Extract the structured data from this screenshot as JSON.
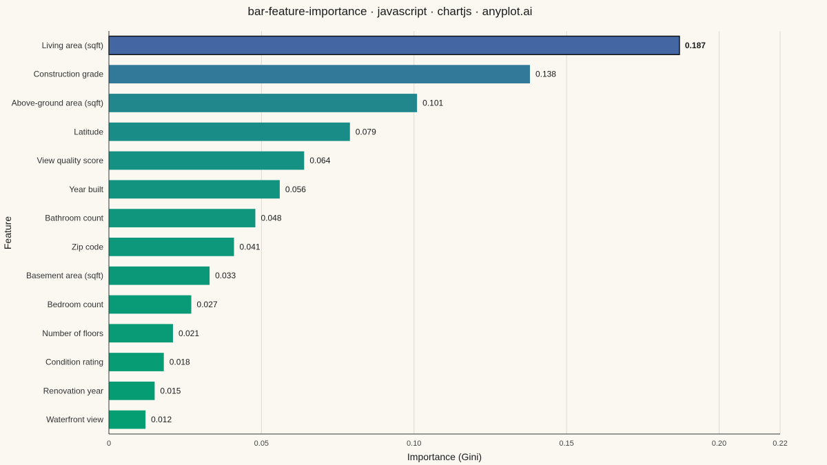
{
  "chart_data": {
    "type": "bar",
    "orientation": "horizontal",
    "title": "bar-feature-importance · javascript · chartjs · anyplot.ai",
    "xlabel": "Importance (Gini)",
    "ylabel": "Feature",
    "xlim": [
      0,
      0.22
    ],
    "x_ticks": [
      0,
      0.05,
      0.1,
      0.15,
      0.2,
      0.22
    ],
    "x_tick_labels": [
      "0",
      "0.05",
      "0.10",
      "0.15",
      "0.20",
      "0.22"
    ],
    "grid": "vertical",
    "legend": "none",
    "categories": [
      "Living area (sqft)",
      "Construction grade",
      "Above-ground area (sqft)",
      "Latitude",
      "View quality score",
      "Year built",
      "Bathroom count",
      "Zip code",
      "Basement area (sqft)",
      "Bedroom count",
      "Number of floors",
      "Condition rating",
      "Renovation year",
      "Waterfront view"
    ],
    "values": [
      0.187,
      0.138,
      0.101,
      0.079,
      0.064,
      0.056,
      0.048,
      0.041,
      0.033,
      0.027,
      0.021,
      0.018,
      0.015,
      0.012
    ],
    "value_labels": [
      "0.187",
      "0.138",
      "0.101",
      "0.079",
      "0.064",
      "0.056",
      "0.048",
      "0.041",
      "0.033",
      "0.027",
      "0.021",
      "0.018",
      "0.015",
      "0.012"
    ],
    "colors": [
      "#4466A3",
      "#317899",
      "#22878D",
      "#1A8C87",
      "#159183",
      "#12937F",
      "#0F967D",
      "#0D977B",
      "#0B9879",
      "#099A77",
      "#089B75",
      "#079C74",
      "#069C73",
      "#059D72"
    ],
    "highlight_index": 0
  }
}
